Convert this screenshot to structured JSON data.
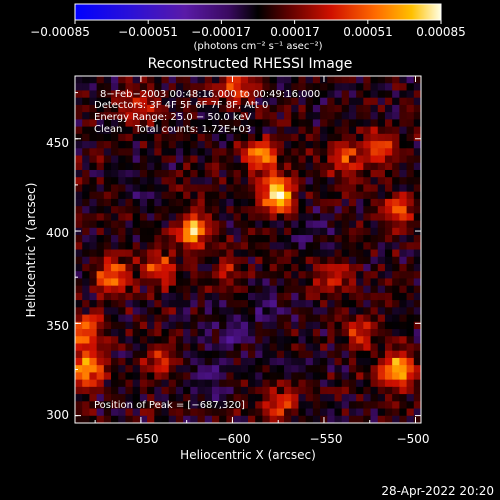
{
  "chart_data": {
    "type": "heatmap",
    "title": "Reconstructed RHESSI Image",
    "xlabel": "Heliocentric X (arcsec)",
    "ylabel": "Heliocentric Y (arcsec)",
    "xlim": [
      -686,
      -497
    ],
    "ylim": [
      296,
      484
    ],
    "x_ticks": [
      -650,
      -600,
      -550,
      -500
    ],
    "x_tick_labels": [
      "−650",
      "−600",
      "−550",
      "−500"
    ],
    "y_ticks": [
      300,
      350,
      400,
      450
    ],
    "y_tick_labels": [
      "300",
      "350",
      "400",
      "450"
    ],
    "colorbar": {
      "range": [
        -0.00085,
        0.00085
      ],
      "tick_values": [
        -0.00085,
        -0.00051,
        -0.00017,
        0.00017,
        0.00051,
        0.00085
      ],
      "tick_labels": [
        "−0.00085",
        "−0.00051",
        "−0.00017",
        "0.00017",
        "0.00051",
        "0.00085"
      ],
      "unit_label": "(photons cm⁻² s⁻¹ asec⁻²)"
    },
    "annotations": [
      "8−Feb−2003 00:48:16.000 to 00:49:16.000",
      "Detectors: 3F 4F 5F 6F 7F 8F, Att 0",
      "Energy Range: 25.0 − 50.0 keV",
      "Clean    Total counts: 1.72E+03"
    ],
    "peak_label": "Position of Peak = [−687,320]",
    "peak": [
      -687,
      320
    ],
    "sources": [
      {
        "x": -510,
        "y": 325,
        "intensity": 1.0
      },
      {
        "x": -575,
        "y": 420,
        "intensity": 0.95
      },
      {
        "x": -585,
        "y": 440,
        "intensity": 0.8
      },
      {
        "x": -622,
        "y": 400,
        "intensity": 0.85
      },
      {
        "x": -665,
        "y": 375,
        "intensity": 0.7
      },
      {
        "x": -680,
        "y": 325,
        "intensity": 0.8
      },
      {
        "x": -680,
        "y": 345,
        "intensity": 0.65
      },
      {
        "x": -640,
        "y": 380,
        "intensity": 0.55
      },
      {
        "x": -520,
        "y": 445,
        "intensity": 0.55
      },
      {
        "x": -510,
        "y": 410,
        "intensity": 0.55
      },
      {
        "x": -545,
        "y": 375,
        "intensity": 0.5
      },
      {
        "x": -540,
        "y": 440,
        "intensity": 0.5
      },
      {
        "x": -650,
        "y": 468,
        "intensity": 0.5
      },
      {
        "x": -600,
        "y": 478,
        "intensity": 0.5
      },
      {
        "x": -640,
        "y": 330,
        "intensity": 0.45
      },
      {
        "x": -575,
        "y": 305,
        "intensity": 0.5
      },
      {
        "x": -530,
        "y": 345,
        "intensity": 0.45
      },
      {
        "x": -600,
        "y": 380,
        "intensity": 0.35
      }
    ],
    "negative_regions": [
      {
        "x": -600,
        "y": 345,
        "intensity": 0.6
      },
      {
        "x": -615,
        "y": 320,
        "intensity": 0.5
      },
      {
        "x": -580,
        "y": 360,
        "intensity": 0.5
      },
      {
        "x": -555,
        "y": 400,
        "intensity": 0.4
      },
      {
        "x": -650,
        "y": 420,
        "intensity": 0.4
      }
    ]
  },
  "timestamp": "28-Apr-2022 20:20"
}
